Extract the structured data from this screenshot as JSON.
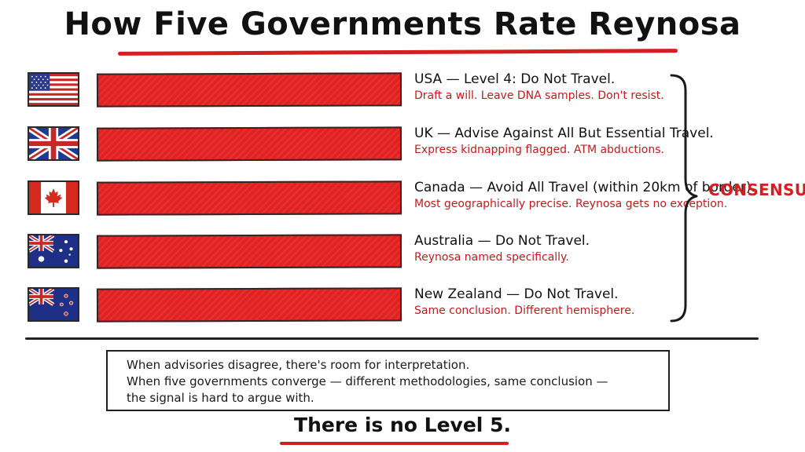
{
  "title": "How Five Governments Rate Reynosa",
  "colors": {
    "accent_red": "#d31f1f",
    "bar_red": "#e22222",
    "ink": "#111111"
  },
  "advisories": [
    {
      "flag_icon": "usa-flag-icon",
      "title": "USA — Level 4: Do Not Travel.",
      "note": "Draft a will. Leave DNA samples. Don't resist."
    },
    {
      "flag_icon": "uk-flag-icon",
      "title": "UK — Advise Against All But Essential Travel.",
      "note": "Express kidnapping flagged. ATM abductions."
    },
    {
      "flag_icon": "canada-flag-icon",
      "title": "Canada — Avoid All Travel (within 20km of border).",
      "note": "Most geographically precise. Reynosa gets no exception."
    },
    {
      "flag_icon": "australia-flag-icon",
      "title": "Australia — Do Not Travel.",
      "note": "Reynosa named specifically."
    },
    {
      "flag_icon": "new-zealand-flag-icon",
      "title": "New Zealand — Do Not Travel.",
      "note": "Same conclusion. Different hemisphere."
    }
  ],
  "consensus_label": "CONSENSUS",
  "quote": {
    "line1": "When advisories disagree, there's room for interpretation.",
    "line2": "When five governments converge — different methodologies, same conclusion —",
    "line3": "the signal is hard to argue with."
  },
  "closing": "There is no Level 5."
}
